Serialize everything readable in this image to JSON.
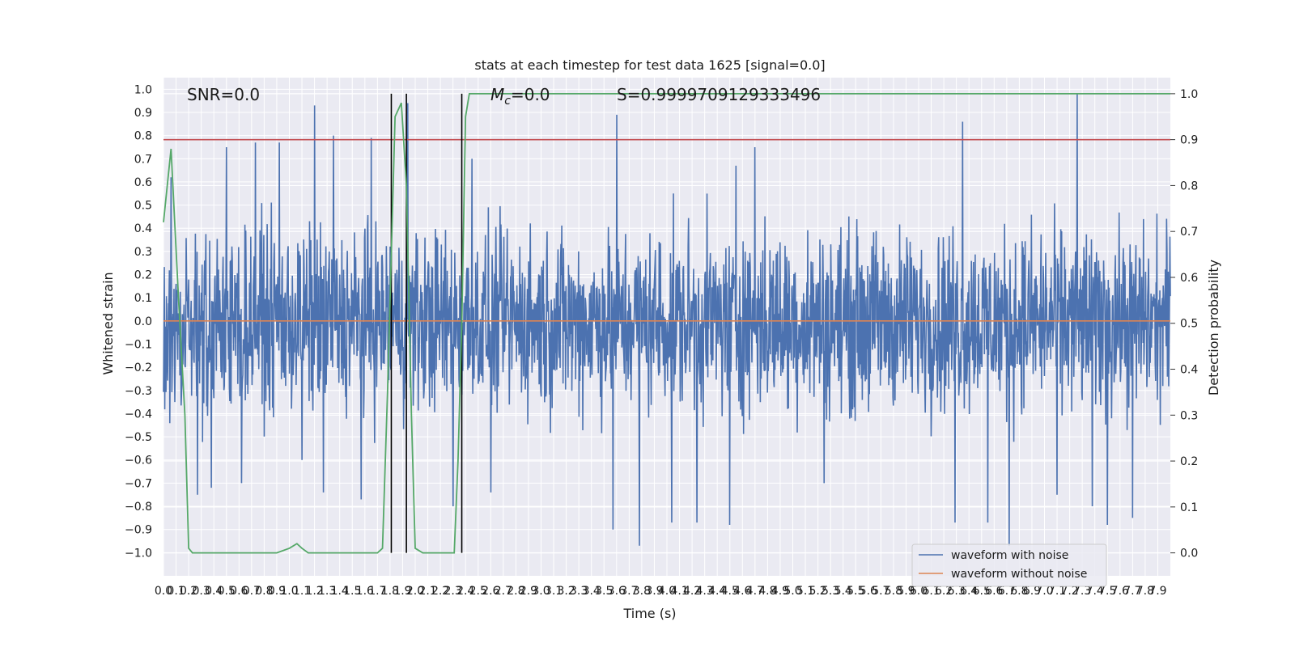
{
  "chart_data": {
    "type": "line",
    "title": "stats at each timestep for test data 1625 [signal=0.0]",
    "xlabel": "Time (s)",
    "ylabel_left": "Whitened strain",
    "ylabel_right": "Detection probability",
    "xlim": [
      0,
      8
    ],
    "ylim_left": [
      -1.1,
      1.05
    ],
    "ylim_right": [
      -0.05,
      1.035
    ],
    "x_ticks": [
      0.0,
      0.1,
      0.2,
      0.3,
      0.4,
      0.5,
      0.6,
      0.7,
      0.8,
      0.9,
      1.0,
      1.1,
      1.2,
      1.3,
      1.4,
      1.5,
      1.6,
      1.7,
      1.8,
      1.9,
      2.0,
      2.1,
      2.2,
      2.3,
      2.4,
      2.5,
      2.6,
      2.7,
      2.8,
      2.9,
      3.0,
      3.1,
      3.2,
      3.3,
      3.4,
      3.5,
      3.6,
      3.7,
      3.8,
      3.9,
      4.0,
      4.1,
      4.2,
      4.3,
      4.4,
      4.5,
      4.6,
      4.7,
      4.8,
      4.9,
      5.0,
      5.1,
      5.2,
      5.3,
      5.4,
      5.5,
      5.6,
      5.7,
      5.8,
      5.9,
      6.0,
      6.1,
      6.2,
      6.3,
      6.4,
      6.5,
      6.6,
      6.7,
      6.8,
      6.9,
      7.0,
      7.1,
      7.2,
      7.3,
      7.4,
      7.5,
      7.6,
      7.7,
      7.8,
      7.9
    ],
    "y_ticks_left": [
      1.0,
      0.9,
      0.8,
      0.7,
      0.6,
      0.5,
      0.4,
      0.3,
      0.2,
      0.1,
      0.0,
      -0.1,
      -0.2,
      -0.3,
      -0.4,
      -0.5,
      -0.6,
      -0.7,
      -0.8,
      -0.9,
      -1.0
    ],
    "y_ticks_right": [
      1.0,
      0.9,
      0.8,
      0.7,
      0.6,
      0.5,
      0.4,
      0.3,
      0.2,
      0.1,
      0.0
    ],
    "grid": true,
    "legend_position": "lower-right",
    "annotations": {
      "snr": "SNR=0.0",
      "mc_symbol": "M",
      "mc_sub": "c",
      "mc_value": "=0.0",
      "s": "S=0.9999709129333496"
    },
    "threshold": {
      "axis": "right",
      "value": 0.9,
      "color": "#c44e52"
    },
    "vertical_lines": {
      "x": [
        1.81,
        1.93,
        2.37
      ],
      "ymin_right": 0.0,
      "ymax_right": 1.0,
      "color": "#000000"
    },
    "series": [
      {
        "name": "waveform with noise",
        "axis": "left",
        "color": "#4c72b0",
        "x_range": [
          0,
          8
        ],
        "amplitude_typical": [
          -0.6,
          0.6
        ],
        "peaks": [
          {
            "x": 0.06,
            "y": 0.62
          },
          {
            "x": 0.27,
            "y": -0.75
          },
          {
            "x": 0.38,
            "y": -0.72
          },
          {
            "x": 0.5,
            "y": 0.75
          },
          {
            "x": 0.62,
            "y": -0.7
          },
          {
            "x": 0.73,
            "y": 0.77
          },
          {
            "x": 0.92,
            "y": 0.77
          },
          {
            "x": 1.1,
            "y": -0.6
          },
          {
            "x": 1.2,
            "y": 0.93
          },
          {
            "x": 1.27,
            "y": -0.74
          },
          {
            "x": 1.35,
            "y": 0.8
          },
          {
            "x": 1.57,
            "y": -0.77
          },
          {
            "x": 1.65,
            "y": 0.79
          },
          {
            "x": 1.94,
            "y": 0.94
          },
          {
            "x": 2.3,
            "y": -0.8
          },
          {
            "x": 2.45,
            "y": 0.7
          },
          {
            "x": 2.6,
            "y": -0.74
          },
          {
            "x": 3.6,
            "y": 0.89
          },
          {
            "x": 3.57,
            "y": -0.9
          },
          {
            "x": 3.78,
            "y": -0.97
          },
          {
            "x": 4.04,
            "y": -0.87
          },
          {
            "x": 4.24,
            "y": -0.87
          },
          {
            "x": 4.5,
            "y": -0.88
          },
          {
            "x": 4.55,
            "y": 0.67
          },
          {
            "x": 4.7,
            "y": 0.75
          },
          {
            "x": 5.25,
            "y": -0.7
          },
          {
            "x": 6.29,
            "y": -0.87
          },
          {
            "x": 6.35,
            "y": 0.86
          },
          {
            "x": 6.55,
            "y": -0.87
          },
          {
            "x": 6.72,
            "y": -0.97
          },
          {
            "x": 7.1,
            "y": -0.75
          },
          {
            "x": 7.26,
            "y": 0.98
          },
          {
            "x": 7.38,
            "y": -0.8
          },
          {
            "x": 7.5,
            "y": -0.88
          },
          {
            "x": 7.7,
            "y": -0.85
          }
        ]
      },
      {
        "name": "waveform without noise",
        "axis": "left",
        "color": "#dd8452",
        "x": [
          0,
          8
        ],
        "y": [
          0.0,
          0.0
        ]
      },
      {
        "name": "",
        "axis": "right",
        "color": "#55a868",
        "x": [
          0,
          0.06,
          0.12,
          0.17,
          0.2,
          0.23,
          0.26,
          0.35,
          0.5,
          0.7,
          0.9,
          1.0,
          1.06,
          1.1,
          1.15,
          1.3,
          1.5,
          1.7,
          1.74,
          1.78,
          1.84,
          1.89,
          1.93,
          1.97,
          2.0,
          2.06,
          2.1,
          2.2,
          2.31,
          2.34,
          2.37,
          2.4,
          2.43,
          3.0,
          4.0,
          5.0,
          6.0,
          7.0,
          8.0
        ],
        "y": [
          0.72,
          0.88,
          0.55,
          0.3,
          0.01,
          0.0,
          0.0,
          0.0,
          0.0,
          0.0,
          0.0,
          0.01,
          0.02,
          0.01,
          0.0,
          0.0,
          0.0,
          0.0,
          0.01,
          0.35,
          0.95,
          0.98,
          0.8,
          0.3,
          0.01,
          0.0,
          0.0,
          0.0,
          0.0,
          0.2,
          0.5,
          0.95,
          1.0,
          1.0,
          1.0,
          1.0,
          1.0,
          1.0,
          1.0
        ]
      }
    ]
  }
}
